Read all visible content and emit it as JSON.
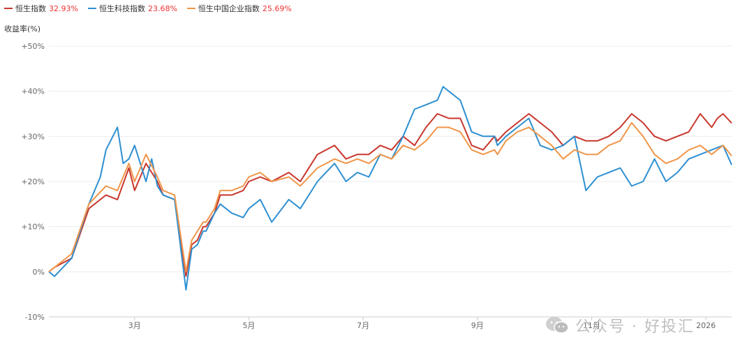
{
  "legend": [
    {
      "name": "恒生指数",
      "value": "32.93%",
      "color": "#c8372d"
    },
    {
      "name": "恒生科技指数",
      "value": "23.68%",
      "color": "#2e8fd1"
    },
    {
      "name": "恒生中国企业指数",
      "value": "25.69%",
      "color": "#f0964a"
    }
  ],
  "watermark": "公众号 · 好投汇",
  "chart_data": {
    "type": "line",
    "ylabel": "收益率(%)",
    "ylim": [
      -10,
      50
    ],
    "yticks": [
      "+50%",
      "+40%",
      "+30%",
      "+20%",
      "+10%",
      "0%",
      "-10%"
    ],
    "ytick_values": [
      50,
      40,
      30,
      20,
      10,
      0,
      -10
    ],
    "xticks": [
      "3月",
      "5月",
      "7月",
      "9月",
      "11月",
      "2026"
    ],
    "xtick_values": [
      2.1,
      4.1,
      6.1,
      8.1,
      10.1,
      12.1
    ],
    "xlim": [
      0.6,
      12.55
    ],
    "grid": true,
    "legend_position": "top-left",
    "series": [
      {
        "name": "恒生指数",
        "color": "#c8372d",
        "x": [
          0.6,
          0.7,
          1.0,
          1.3,
          1.6,
          1.8,
          2.0,
          2.1,
          2.3,
          2.5,
          2.6,
          2.8,
          3.0,
          3.1,
          3.2,
          3.3,
          3.35,
          3.5,
          3.6,
          3.8,
          4.0,
          4.1,
          4.3,
          4.5,
          4.8,
          5.0,
          5.3,
          5.6,
          5.8,
          6.0,
          6.2,
          6.4,
          6.6,
          6.8,
          7.0,
          7.2,
          7.4,
          7.6,
          7.8,
          8.0,
          8.2,
          8.4,
          8.45,
          8.6,
          8.8,
          9.0,
          9.2,
          9.4,
          9.6,
          9.8,
          10.0,
          10.2,
          10.4,
          10.6,
          10.8,
          11.0,
          11.2,
          11.4,
          11.6,
          11.8,
          12.0,
          12.2,
          12.3,
          12.4,
          12.55
        ],
        "y": [
          0,
          1,
          3,
          14,
          17,
          16,
          23,
          18,
          24,
          20,
          17,
          16,
          -1,
          6,
          7,
          10,
          10,
          13,
          17,
          17,
          18,
          20,
          21,
          20,
          22,
          20,
          26,
          28,
          25,
          26,
          26,
          28,
          27,
          30,
          28,
          32,
          35,
          34,
          34,
          28,
          27,
          30,
          29,
          31,
          33,
          35,
          33,
          31,
          28,
          30,
          29,
          29,
          30,
          32,
          35,
          33,
          30,
          29,
          30,
          31,
          35,
          32,
          34,
          35,
          32.93
        ]
      },
      {
        "name": "恒生科技指数",
        "color": "#2e8fd1",
        "x": [
          0.6,
          0.7,
          1.0,
          1.3,
          1.5,
          1.6,
          1.8,
          1.9,
          2.0,
          2.1,
          2.3,
          2.4,
          2.5,
          2.6,
          2.8,
          3.0,
          3.1,
          3.2,
          3.3,
          3.35,
          3.5,
          3.6,
          3.8,
          4.0,
          4.1,
          4.3,
          4.5,
          4.8,
          5.0,
          5.3,
          5.6,
          5.8,
          6.0,
          6.2,
          6.4,
          6.6,
          6.8,
          7.0,
          7.2,
          7.4,
          7.5,
          7.6,
          7.8,
          8.0,
          8.2,
          8.4,
          8.45,
          8.6,
          8.8,
          9.0,
          9.2,
          9.4,
          9.6,
          9.8,
          10.0,
          10.2,
          10.4,
          10.6,
          10.8,
          11.0,
          11.2,
          11.4,
          11.6,
          11.8,
          12.0,
          12.2,
          12.4,
          12.55
        ],
        "y": [
          0,
          -1,
          3,
          15,
          21,
          27,
          32,
          24,
          25,
          28,
          20,
          25,
          19,
          17,
          16,
          -4,
          5,
          6,
          9,
          9,
          13,
          15,
          13,
          12,
          14,
          16,
          11,
          16,
          14,
          20,
          24,
          20,
          22,
          21,
          26,
          25,
          30,
          36,
          37,
          38,
          41,
          40,
          38,
          31,
          30,
          30,
          28,
          30,
          32,
          34,
          28,
          27,
          28,
          30,
          18,
          21,
          22,
          23,
          19,
          20,
          25,
          20,
          22,
          25,
          26,
          27,
          28,
          23.68
        ]
      },
      {
        "name": "恒生中国企业指数",
        "color": "#f0964a",
        "x": [
          0.6,
          0.7,
          1.0,
          1.3,
          1.6,
          1.8,
          2.0,
          2.1,
          2.3,
          2.5,
          2.6,
          2.8,
          3.0,
          3.1,
          3.2,
          3.3,
          3.35,
          3.5,
          3.6,
          3.8,
          4.0,
          4.1,
          4.3,
          4.5,
          4.8,
          5.0,
          5.3,
          5.6,
          5.8,
          6.0,
          6.2,
          6.4,
          6.6,
          6.8,
          7.0,
          7.2,
          7.4,
          7.6,
          7.8,
          8.0,
          8.2,
          8.4,
          8.45,
          8.6,
          8.8,
          9.0,
          9.2,
          9.4,
          9.6,
          9.8,
          10.0,
          10.2,
          10.4,
          10.6,
          10.8,
          11.0,
          11.2,
          11.4,
          11.6,
          11.8,
          12.0,
          12.2,
          12.3,
          12.4,
          12.55
        ],
        "y": [
          0,
          1,
          4,
          15,
          19,
          18,
          24,
          20,
          26,
          21,
          18,
          17,
          0,
          7,
          9,
          11,
          11,
          14,
          18,
          18,
          19,
          21,
          22,
          20,
          21,
          19,
          23,
          25,
          24,
          25,
          24,
          26,
          25,
          28,
          27,
          29,
          32,
          32,
          31,
          27,
          26,
          27,
          26,
          29,
          31,
          32,
          30,
          28,
          25,
          27,
          26,
          26,
          28,
          29,
          33,
          30,
          26,
          24,
          25,
          27,
          28,
          26,
          27,
          28,
          25.69
        ]
      }
    ]
  }
}
